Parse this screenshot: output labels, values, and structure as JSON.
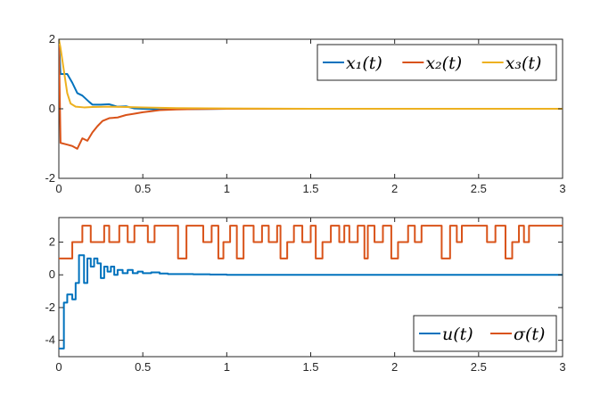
{
  "chart_data": [
    {
      "type": "line",
      "xlim": [
        0,
        3
      ],
      "ylim": [
        -2,
        2
      ],
      "x_ticks": [
        0,
        0.5,
        1,
        1.5,
        2,
        2.5,
        3
      ],
      "x_tick_labels": [
        "0",
        "0.5",
        "1",
        "1.5",
        "2",
        "2.5",
        "3"
      ],
      "y_ticks": [
        -2,
        0,
        2
      ],
      "y_tick_labels": [
        "-2",
        "0",
        "2"
      ],
      "legend_position": "top-right",
      "series": [
        {
          "name": "x₁(t)",
          "color": "#0072BD",
          "x": [
            0,
            0.01,
            0.05,
            0.08,
            0.11,
            0.14,
            0.18,
            0.2,
            0.25,
            0.3,
            0.35,
            0.4,
            0.45,
            0.5,
            0.55,
            0.6,
            0.7,
            0.8,
            1.0,
            1.5,
            2.0,
            2.5,
            3.0
          ],
          "y": [
            2,
            1.0,
            1.0,
            0.75,
            0.45,
            0.38,
            0.2,
            0.12,
            0.12,
            0.13,
            0.06,
            0.07,
            0.01,
            0.0,
            -0.01,
            -0.02,
            -0.01,
            -0.01,
            0.0,
            0.0,
            0.0,
            0.0,
            0.0
          ]
        },
        {
          "name": "x₂(t)",
          "color": "#D95319",
          "x": [
            0,
            0.01,
            0.05,
            0.08,
            0.11,
            0.14,
            0.17,
            0.2,
            0.23,
            0.26,
            0.3,
            0.35,
            0.4,
            0.45,
            0.5,
            0.55,
            0.6,
            0.7,
            0.8,
            1.0,
            1.5,
            2.0,
            2.5,
            3.0
          ],
          "y": [
            2,
            -0.98,
            -1.03,
            -1.07,
            -1.15,
            -0.85,
            -0.92,
            -0.68,
            -0.5,
            -0.35,
            -0.27,
            -0.25,
            -0.18,
            -0.14,
            -0.1,
            -0.07,
            -0.04,
            -0.02,
            -0.01,
            0.0,
            0.0,
            0.0,
            0.0,
            0.0
          ]
        },
        {
          "name": "x₃(t)",
          "color": "#EDB120",
          "x": [
            0,
            0.01,
            0.03,
            0.05,
            0.07,
            0.1,
            0.15,
            0.2,
            0.3,
            0.4,
            0.5,
            0.7,
            1.0,
            1.5,
            2.0,
            2.5,
            3.0
          ],
          "y": [
            2,
            1.75,
            1.1,
            0.45,
            0.15,
            0.06,
            0.04,
            0.05,
            0.06,
            0.05,
            0.04,
            0.02,
            0.01,
            0.0,
            0.0,
            0.0,
            0.0
          ]
        }
      ]
    },
    {
      "type": "line",
      "xlim": [
        0,
        3
      ],
      "ylim": [
        -5,
        3.5
      ],
      "x_ticks": [
        0,
        0.5,
        1,
        1.5,
        2,
        2.5,
        3
      ],
      "x_tick_labels": [
        "0",
        "0.5",
        "1",
        "1.5",
        "2",
        "2.5",
        "3"
      ],
      "y_ticks": [
        -4,
        -2,
        0,
        2
      ],
      "y_tick_labels": [
        "-4",
        "-2",
        "0",
        "2"
      ],
      "legend_position": "bottom-right",
      "series": [
        {
          "name": "u(t)",
          "color": "#0072BD",
          "step": true,
          "x": [
            0,
            0.03,
            0.05,
            0.08,
            0.1,
            0.12,
            0.15,
            0.17,
            0.19,
            0.21,
            0.23,
            0.25,
            0.27,
            0.29,
            0.31,
            0.33,
            0.35,
            0.38,
            0.41,
            0.44,
            0.47,
            0.5,
            0.55,
            0.6,
            0.65,
            0.7,
            0.8,
            0.9,
            1.0,
            3.0
          ],
          "y": [
            -4.5,
            -1.7,
            -1.2,
            -1.5,
            -0.5,
            1.2,
            -0.5,
            1.0,
            0.5,
            1.0,
            0.7,
            -0.2,
            0.5,
            0.2,
            0.5,
            0.0,
            0.3,
            0.1,
            0.3,
            0.1,
            0.2,
            0.1,
            0.15,
            0.08,
            0.05,
            0.05,
            0.03,
            0.02,
            0.0,
            0.0
          ]
        },
        {
          "name": "σ(t)",
          "color": "#D95319",
          "step": true,
          "x": [
            0,
            0.08,
            0.14,
            0.19,
            0.27,
            0.3,
            0.36,
            0.41,
            0.45,
            0.53,
            0.57,
            0.71,
            0.76,
            0.86,
            0.91,
            0.95,
            0.98,
            1.02,
            1.06,
            1.1,
            1.16,
            1.21,
            1.25,
            1.3,
            1.32,
            1.36,
            1.4,
            1.45,
            1.5,
            1.53,
            1.57,
            1.62,
            1.67,
            1.7,
            1.73,
            1.78,
            1.82,
            1.84,
            1.88,
            1.93,
            1.98,
            2.02,
            2.08,
            2.12,
            2.16,
            2.24,
            2.28,
            2.33,
            2.37,
            2.4,
            2.5,
            2.55,
            2.6,
            2.66,
            2.7,
            2.74,
            2.77,
            2.8,
            2.83,
            3.0
          ],
          "y": [
            1,
            2,
            3,
            2,
            3,
            2,
            3,
            2,
            3,
            2,
            3,
            1,
            3,
            2,
            3,
            1,
            2,
            3,
            1,
            3,
            2,
            3,
            2,
            3,
            1,
            2,
            3,
            2,
            3,
            1,
            2,
            3,
            2,
            3,
            2,
            3,
            1,
            3,
            2,
            3,
            1,
            2,
            3,
            2,
            3,
            3,
            1,
            3,
            2,
            3,
            3,
            2,
            3,
            1,
            2,
            3,
            2,
            3,
            3,
            3
          ]
        }
      ]
    }
  ]
}
